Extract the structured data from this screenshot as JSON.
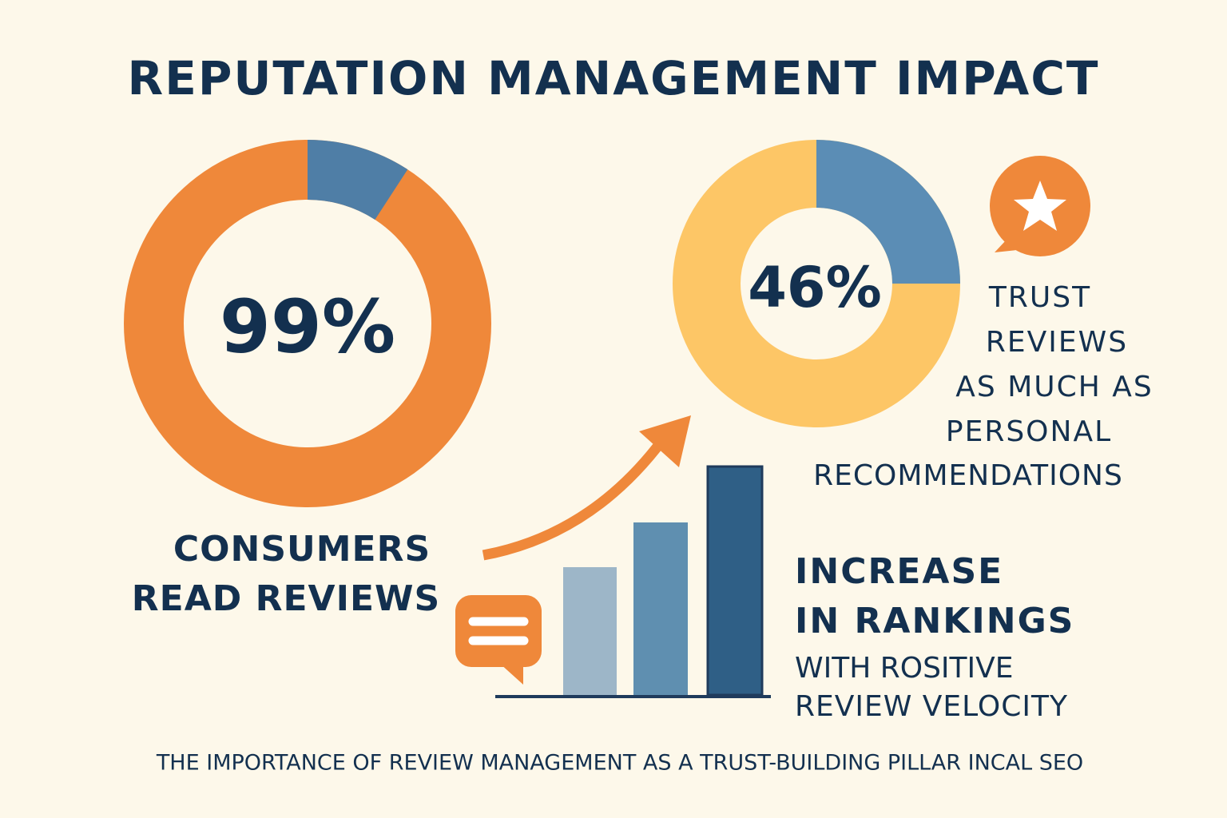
{
  "title": "REPUTATION MANAGEMENT IMPACT",
  "stats": [
    {
      "value": "99%",
      "caption": [
        "CONSUMERS",
        "READ REVIEWS"
      ]
    },
    {
      "value": "46%",
      "caption": [
        "TRUST",
        "REVIEWS",
        "AS MUCH AS",
        "PERSONAL",
        "RECOMMENDATIONS"
      ]
    },
    {
      "caption": [
        "INCREASE",
        "IN RANKINGS",
        "WITH ROSITIVE",
        "REVIEW VELOCITY"
      ]
    }
  ],
  "footer": "THE IMPORTANCE OF REVIEW MANAGEMENT AS A TRUST-BUILDING PILLAR INCAL SEO"
}
